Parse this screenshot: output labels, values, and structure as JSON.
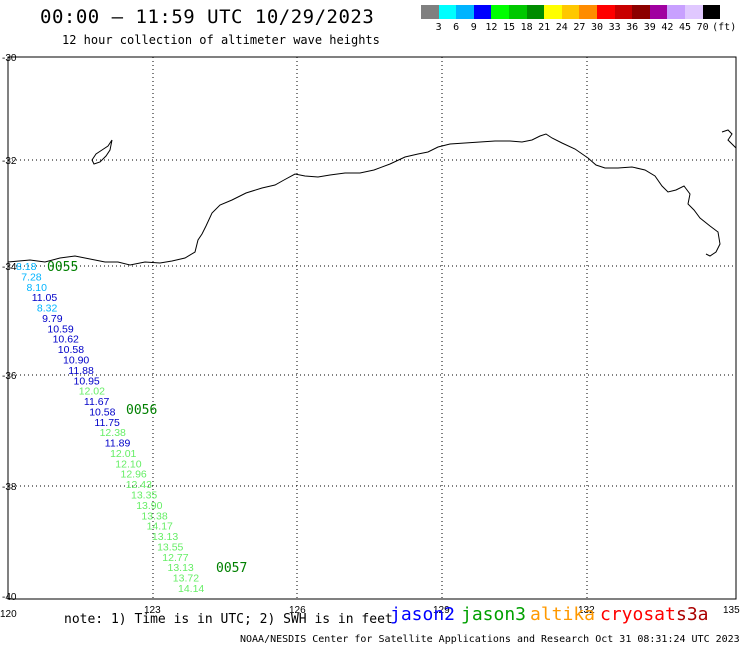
{
  "header": {
    "title": "00:00 – 11:59 UTC 10/29/2023",
    "subtitle": "12 hour collection of altimeter wave heights"
  },
  "colorbar": {
    "colors": [
      "#808080",
      "#00ffff",
      "#00b4ff",
      "#0000ff",
      "#00ff00",
      "#00c800",
      "#008c00",
      "#ffff00",
      "#ffc800",
      "#ff8c00",
      "#ff0000",
      "#c80000",
      "#8c0000",
      "#a000a0",
      "#c8a0ff",
      "#e0c8ff",
      "#000000"
    ],
    "labels": [
      "3",
      "6",
      "9",
      "12",
      "15",
      "18",
      "21",
      "24",
      "27",
      "30",
      "33",
      "36",
      "39",
      "42",
      "45",
      "70"
    ],
    "units": "(ft)"
  },
  "map": {
    "lon_ticks": [
      "120",
      "123",
      "126",
      "129",
      "132",
      "135"
    ],
    "lat_ticks": [
      "-30",
      "-32",
      "-34",
      "-36",
      "-38",
      "-40"
    ],
    "track_points": [
      {
        "v": "8.18",
        "c": "#00b4ff"
      },
      {
        "v": "7.28",
        "c": "#00b4ff"
      },
      {
        "v": "8.10",
        "c": "#00b4ff"
      },
      {
        "v": "11.05",
        "c": "#0000c8"
      },
      {
        "v": "8.32",
        "c": "#00b4ff"
      },
      {
        "v": "9.79",
        "c": "#0000c8"
      },
      {
        "v": "10.59",
        "c": "#0000c8"
      },
      {
        "v": "10.62",
        "c": "#0000c8"
      },
      {
        "v": "10.58",
        "c": "#0000c8"
      },
      {
        "v": "10.90",
        "c": "#0000c8"
      },
      {
        "v": "11.88",
        "c": "#0000c8"
      },
      {
        "v": "10.95",
        "c": "#0000c8"
      },
      {
        "v": "12.02",
        "c": "#66ee66"
      },
      {
        "v": "11.67",
        "c": "#0000c8"
      },
      {
        "v": "10.58",
        "c": "#0000c8"
      },
      {
        "v": "11.75",
        "c": "#0000c8"
      },
      {
        "v": "12.38",
        "c": "#66ee66"
      },
      {
        "v": "11.89",
        "c": "#0000c8"
      },
      {
        "v": "12.01",
        "c": "#66ee66"
      },
      {
        "v": "12.10",
        "c": "#66ee66"
      },
      {
        "v": "12.96",
        "c": "#66ee66"
      },
      {
        "v": "12.43",
        "c": "#66ee66"
      },
      {
        "v": "13.35",
        "c": "#66ee66"
      },
      {
        "v": "13.90",
        "c": "#66ee66"
      },
      {
        "v": "13.38",
        "c": "#66ee66"
      },
      {
        "v": "14.17",
        "c": "#66ee66"
      },
      {
        "v": "13.13",
        "c": "#66ee66"
      },
      {
        "v": "13.55",
        "c": "#66ee66"
      },
      {
        "v": "12.77",
        "c": "#66ee66"
      },
      {
        "v": "13.13",
        "c": "#66ee66"
      },
      {
        "v": "13.72",
        "c": "#66ee66"
      },
      {
        "v": "14.14",
        "c": "#66ee66"
      }
    ],
    "time_labels": [
      "0055",
      "0056",
      "0057"
    ]
  },
  "footer": {
    "note": "note: 1) Time is in UTC; 2) SWH is in feet",
    "legend": [
      {
        "name": "jason2",
        "color": "#0000ff"
      },
      {
        "name": "jason3",
        "color": "#00a000"
      },
      {
        "name": "altika",
        "color": "#ff9900"
      },
      {
        "name": "cryosat",
        "color": "#ff0000"
      },
      {
        "name": "s3a",
        "color": "#aa0000"
      }
    ],
    "credit": "NOAA/NESDIS Center for Satellite Applications and Research   Oct 31 08:31:24 UTC 2023"
  }
}
